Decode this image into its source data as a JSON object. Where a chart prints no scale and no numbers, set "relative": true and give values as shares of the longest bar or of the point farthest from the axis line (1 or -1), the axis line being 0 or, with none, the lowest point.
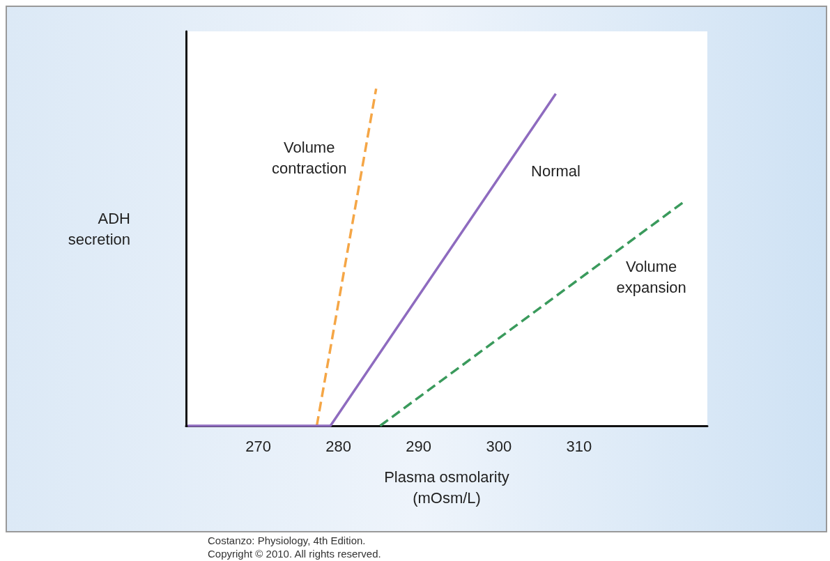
{
  "chart_data": {
    "type": "line",
    "relative": true,
    "xlabel": "Plasma osmolarity\n(mOsm/L)",
    "ylabel": "ADH\nsecretion",
    "xlim": [
      261,
      326
    ],
    "xticks": [
      270,
      280,
      290,
      300,
      310
    ],
    "tick_labels": "x",
    "grid": false,
    "legend": false,
    "marker": "none",
    "series": [
      {
        "name": "Volume contraction",
        "color": "#f5a646",
        "line_style": "dashed",
        "x": [
          277.3,
          284.7
        ],
        "values": [
          0,
          1
        ]
      },
      {
        "name": "Normal",
        "color": "#8e6bbf",
        "line_style": "solid",
        "x": [
          261.2,
          279.0,
          307.1
        ],
        "values": [
          0,
          0,
          0.985
        ]
      },
      {
        "name": "Volume expansion",
        "color": "#3a9a5c",
        "line_style": "dashed",
        "x": [
          285.2,
          323.1
        ],
        "values": [
          0,
          0.665
        ]
      }
    ],
    "annotations": [
      "Costanzo: Physiology, 4th Edition.",
      "Copyright © 2010. All rights reserved."
    ]
  }
}
